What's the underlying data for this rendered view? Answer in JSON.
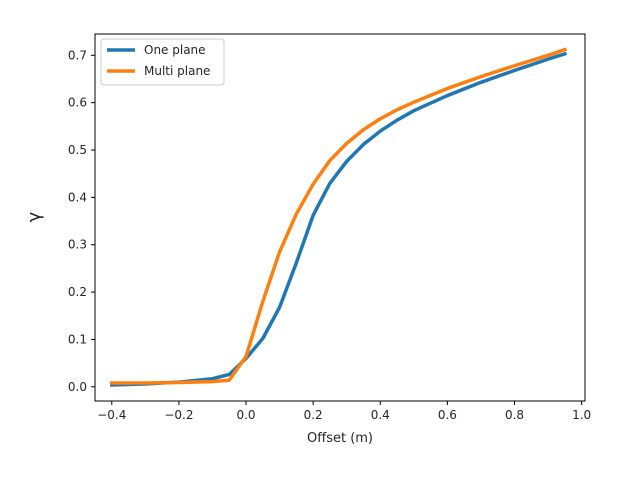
{
  "chart_data": {
    "type": "line",
    "title": "",
    "xlabel": "Offset (m)",
    "ylabel": "γ",
    "xlim": [
      -0.45,
      1.01
    ],
    "ylim": [
      -0.03,
      0.745
    ],
    "xticks": [
      -0.4,
      -0.2,
      0.0,
      0.2,
      0.4,
      0.6,
      0.8,
      1.0
    ],
    "xtick_labels": [
      "−0.4",
      "−0.2",
      "0.0",
      "0.2",
      "0.4",
      "0.6",
      "0.8",
      "1.0"
    ],
    "yticks": [
      0.0,
      0.1,
      0.2,
      0.3,
      0.4,
      0.5,
      0.6,
      0.7
    ],
    "ytick_labels": [
      "0.0",
      "0.1",
      "0.2",
      "0.3",
      "0.4",
      "0.5",
      "0.6",
      "0.7"
    ],
    "grid": false,
    "legend_position": "top-left",
    "series": [
      {
        "name": "One plane",
        "color": "#1f77b4",
        "x": [
          -0.4,
          -0.3,
          -0.2,
          -0.1,
          -0.05,
          0.0,
          0.05,
          0.1,
          0.15,
          0.2,
          0.25,
          0.3,
          0.35,
          0.4,
          0.45,
          0.5,
          0.6,
          0.7,
          0.8,
          0.9,
          0.95
        ],
        "y": [
          0.004,
          0.006,
          0.01,
          0.017,
          0.026,
          0.06,
          0.102,
          0.168,
          0.262,
          0.362,
          0.43,
          0.476,
          0.512,
          0.54,
          0.563,
          0.583,
          0.615,
          0.643,
          0.668,
          0.692,
          0.703
        ]
      },
      {
        "name": "Multi plane",
        "color": "#ff7f0e",
        "x": [
          -0.4,
          -0.3,
          -0.2,
          -0.1,
          -0.05,
          0.0,
          0.05,
          0.1,
          0.15,
          0.2,
          0.25,
          0.3,
          0.35,
          0.4,
          0.45,
          0.5,
          0.6,
          0.7,
          0.8,
          0.9,
          0.95
        ],
        "y": [
          0.008,
          0.008,
          0.009,
          0.011,
          0.014,
          0.064,
          0.18,
          0.285,
          0.365,
          0.428,
          0.478,
          0.514,
          0.543,
          0.566,
          0.585,
          0.601,
          0.63,
          0.655,
          0.678,
          0.7,
          0.712
        ]
      }
    ]
  }
}
